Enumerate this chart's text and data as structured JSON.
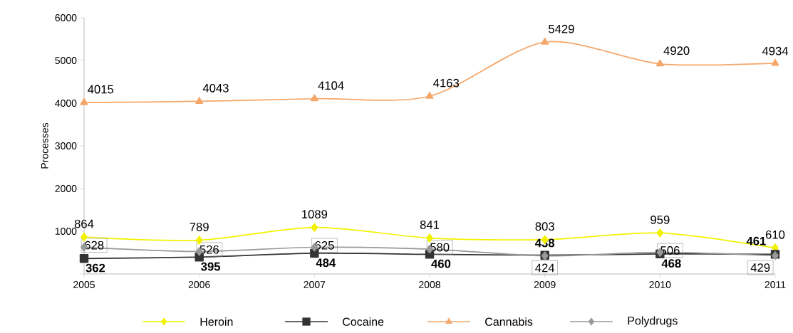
{
  "chart_data": {
    "type": "line",
    "ylabel": "Processes",
    "categories": [
      "2005",
      "2006",
      "2007",
      "2008",
      "2009",
      "2010",
      "2011"
    ],
    "series": [
      {
        "name": "Heroin",
        "color": "#f2f200",
        "marker": "diamond",
        "values": [
          864,
          789,
          1089,
          841,
          803,
          959,
          610
        ]
      },
      {
        "name": "Cocaine",
        "color": "#333333",
        "marker": "square",
        "values": [
          362,
          395,
          484,
          460,
          438,
          468,
          461
        ]
      },
      {
        "name": "Cannabis",
        "color": "#f5a76a",
        "marker": "triangle",
        "values": [
          4015,
          4043,
          4104,
          4163,
          5429,
          4920,
          4934
        ]
      },
      {
        "name": "Polydrugs",
        "color": "#999999",
        "marker": "diamond",
        "values": [
          628,
          526,
          625,
          580,
          424,
          506,
          429
        ]
      }
    ],
    "ylim": [
      0,
      6000
    ],
    "yticks": [
      {
        "value": 0,
        "label": null
      },
      1000,
      2000,
      3000,
      4000,
      5000,
      6000
    ],
    "data_labels": true,
    "legend": "bottom",
    "grid": false,
    "line_style": "solid"
  }
}
